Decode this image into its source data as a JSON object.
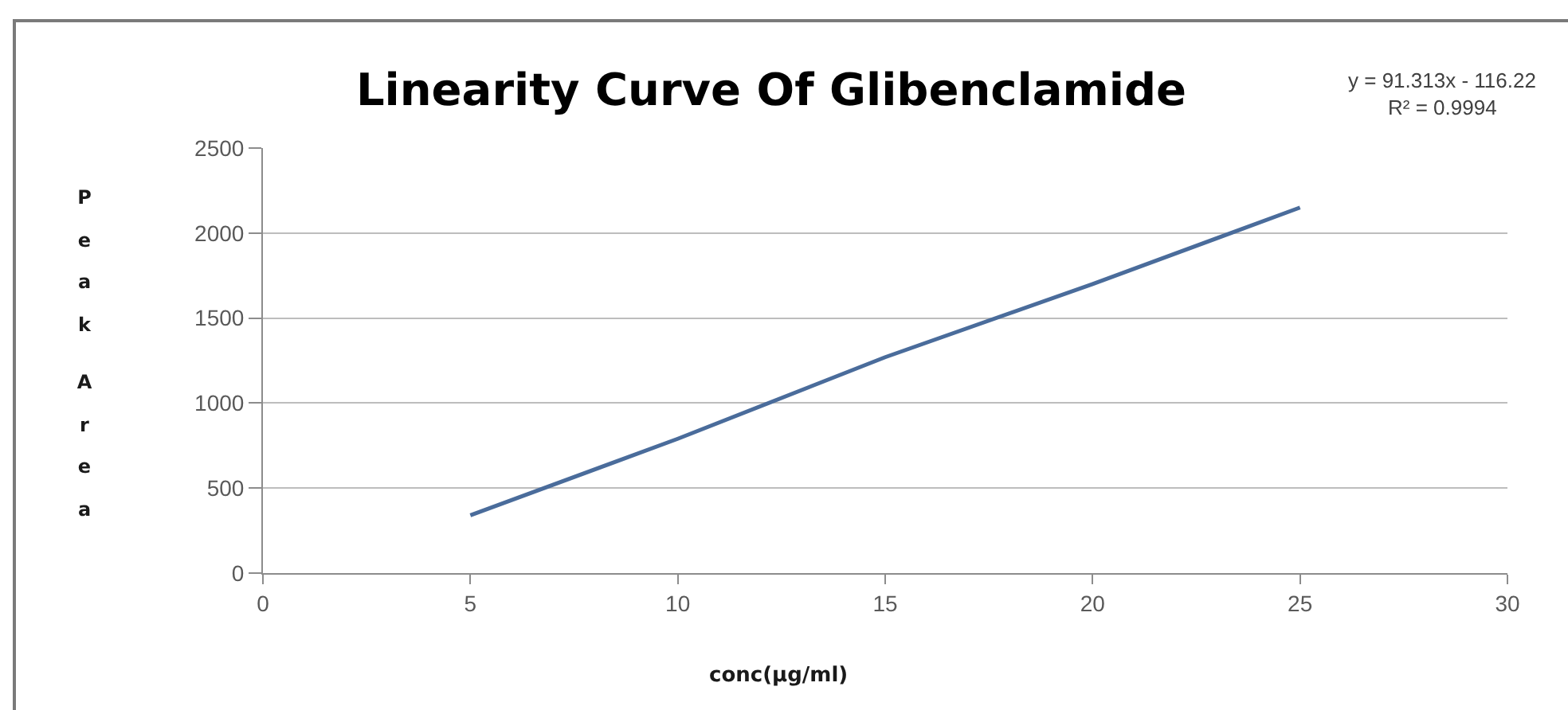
{
  "chart_data": {
    "type": "line",
    "title": "Linearity Curve Of Glibenclamide",
    "xlabel": "conc(µg/ml)",
    "ylabel": "Peak Area",
    "annotations": [
      "y = 91.313x - 116.22",
      "R² = 0.9994"
    ],
    "x": [
      5,
      10,
      15,
      20,
      25
    ],
    "series": [
      {
        "color": "#4a6c9b",
        "values": [
          340,
          790,
          1270,
          1700,
          2150
        ]
      }
    ],
    "xlim": [
      0,
      30
    ],
    "xticks": [
      0,
      5,
      10,
      15,
      20,
      25,
      30
    ],
    "ylim": [
      0,
      2500
    ],
    "yticks": [
      0,
      500,
      1000,
      1500,
      2000,
      2500
    ],
    "grid": "y",
    "marker": "none",
    "line_style": "solid"
  }
}
